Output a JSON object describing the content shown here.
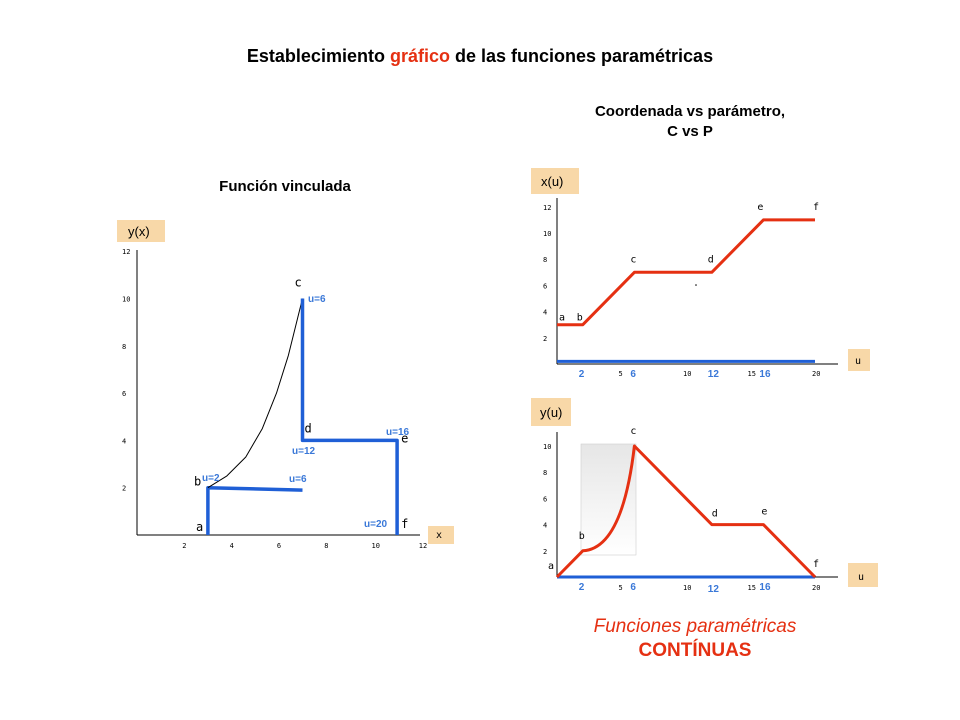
{
  "header": {
    "title_part1": "Establecimiento ",
    "title_highlight": "gráfico",
    "title_part2": " de las funciones paramétricas",
    "right_heading_line1": "Coordenada vs parámetro,",
    "right_heading_line2": "C vs P",
    "left_heading": "Función vinculada"
  },
  "footer": {
    "line1": "Funciones paramétricas",
    "line2": "CONTÍNUAS"
  },
  "colors": {
    "accent_red": "#e53012",
    "accent_blue": "#1f5fd6",
    "label_blue": "#3a78d8",
    "label_box": "#f8d8a8"
  },
  "chart_data": [
    {
      "type": "line",
      "name": "funcion_vinculada",
      "ylabel": "y(x)",
      "xlabel": "x",
      "xlim": [
        0,
        12
      ],
      "ylim": [
        0,
        12
      ],
      "xticks": [
        "2",
        "4",
        "6",
        "8",
        "10",
        "12"
      ],
      "yticks": [
        "2",
        "4",
        "6",
        "8",
        "10",
        "12"
      ],
      "points": [
        {
          "label": "a",
          "x": 3,
          "y": 0
        },
        {
          "label": "b",
          "x": 3,
          "y": 2
        },
        {
          "label": "c",
          "x": 7,
          "y": 10
        },
        {
          "label": "d",
          "x": 7,
          "y": 4
        },
        {
          "label": "e",
          "x": 11,
          "y": 4
        },
        {
          "label": "f",
          "x": 11,
          "y": 0
        }
      ],
      "series": [
        {
          "values": [
            [
              3,
              0
            ],
            [
              3,
              2
            ],
            [
              7,
              1.9
            ]
          ]
        },
        {
          "values": [
            [
              3,
              2
            ],
            [
              3.8,
              2.5
            ],
            [
              4.6,
              3.3
            ],
            [
              5.3,
              4.5
            ],
            [
              5.9,
              6.0
            ],
            [
              6.4,
              7.6
            ],
            [
              6.8,
              9.2
            ],
            [
              7,
              10
            ]
          ]
        },
        {
          "values": [
            [
              7,
              10
            ],
            [
              7,
              4
            ],
            [
              11,
              4
            ],
            [
              11,
              0
            ]
          ]
        }
      ],
      "annotations": [
        "u=2",
        "u=6",
        "u=6",
        "u=12",
        "u=16",
        "u=20"
      ]
    },
    {
      "type": "line",
      "name": "x_vs_u",
      "ylabel": "x(u)",
      "xlabel": "u",
      "xlim": [
        0,
        21
      ],
      "ylim": [
        0,
        12
      ],
      "xticks": [
        "5",
        "10",
        "15",
        "20"
      ],
      "yticks": [
        "2",
        "4",
        "6",
        "8",
        "10",
        "12"
      ],
      "blue_u_labels": [
        "2",
        "6",
        "12",
        "16"
      ],
      "points": [
        {
          "label": "a",
          "x": 0,
          "y": 3
        },
        {
          "label": "b",
          "x": 2,
          "y": 3
        },
        {
          "label": "c",
          "x": 6,
          "y": 7
        },
        {
          "label": "d",
          "x": 12,
          "y": 7
        },
        {
          "label": "e",
          "x": 16,
          "y": 11
        },
        {
          "label": "f",
          "x": 20,
          "y": 11
        }
      ],
      "series": [
        {
          "values": [
            [
              0,
              3
            ],
            [
              2,
              3
            ],
            [
              6,
              7
            ],
            [
              12,
              7
            ],
            [
              16,
              11
            ],
            [
              20,
              11
            ]
          ]
        },
        {
          "values": [
            [
              0,
              0.2
            ],
            [
              20,
              0.2
            ]
          ]
        }
      ]
    },
    {
      "type": "line",
      "name": "y_vs_u",
      "ylabel": "y(u)",
      "xlabel": "u",
      "xlim": [
        0,
        21
      ],
      "ylim": [
        0,
        10
      ],
      "xticks": [
        "5",
        "10",
        "15",
        "20"
      ],
      "yticks": [
        "2",
        "4",
        "6",
        "8",
        "10"
      ],
      "blue_u_labels": [
        "2",
        "6",
        "12",
        "16"
      ],
      "points": [
        {
          "label": "a",
          "x": 0,
          "y": 0
        },
        {
          "label": "b",
          "x": 2,
          "y": 2
        },
        {
          "label": "c",
          "x": 6,
          "y": 10
        },
        {
          "label": "d",
          "x": 12,
          "y": 4
        },
        {
          "label": "e",
          "x": 16,
          "y": 4
        },
        {
          "label": "f",
          "x": 20,
          "y": 0
        }
      ],
      "series": [
        {
          "values": [
            [
              0,
              0
            ],
            [
              2,
              2
            ],
            [
              6,
              10
            ],
            [
              12,
              4
            ],
            [
              16,
              4
            ],
            [
              20,
              0
            ]
          ]
        },
        {
          "values": [
            [
              0,
              0
            ],
            [
              20,
              0
            ]
          ]
        }
      ]
    }
  ]
}
